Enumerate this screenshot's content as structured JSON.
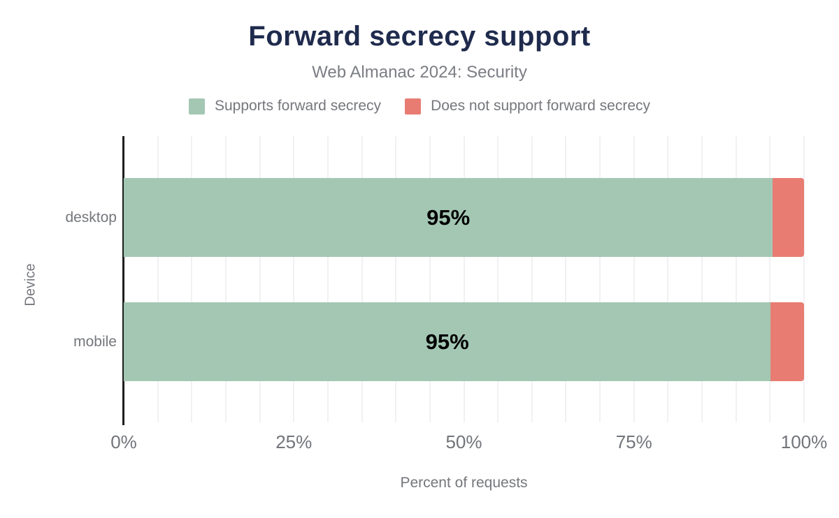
{
  "header": {
    "title": "Forward secrecy support",
    "subtitle": "Web Almanac 2024: Security"
  },
  "legend": {
    "items": [
      {
        "label": "Supports forward secrecy",
        "color": "#a4c7b4"
      },
      {
        "label": "Does not support forward secrecy",
        "color": "#e87c72"
      }
    ]
  },
  "chart_data": {
    "type": "bar",
    "orientation": "horizontal",
    "stacked": true,
    "title": "Forward secrecy support",
    "subtitle": "Web Almanac 2024: Security",
    "categories": [
      "desktop",
      "mobile"
    ],
    "series": [
      {
        "name": "Supports forward secrecy",
        "color": "#a4c7b4",
        "values": [
          95.4,
          95.1
        ],
        "labels": [
          "95%",
          "95%"
        ]
      },
      {
        "name": "Does not support forward secrecy",
        "color": "#e87c72",
        "values": [
          4.6,
          4.9
        ],
        "labels": [
          "",
          ""
        ]
      }
    ],
    "xlabel": "Percent of requests",
    "ylabel": "Device",
    "x_ticks": [
      "0%",
      "25%",
      "50%",
      "75%",
      "100%"
    ],
    "x_tick_positions": [
      0,
      25,
      50,
      75,
      100
    ],
    "xlim": [
      0,
      100
    ],
    "grid": "vertical gridlines every 5%",
    "legend_position": "top",
    "bar_label_color": "#000000",
    "axis_line_color": "#1e1e1e",
    "gridline_color": "#f1f1f3"
  }
}
